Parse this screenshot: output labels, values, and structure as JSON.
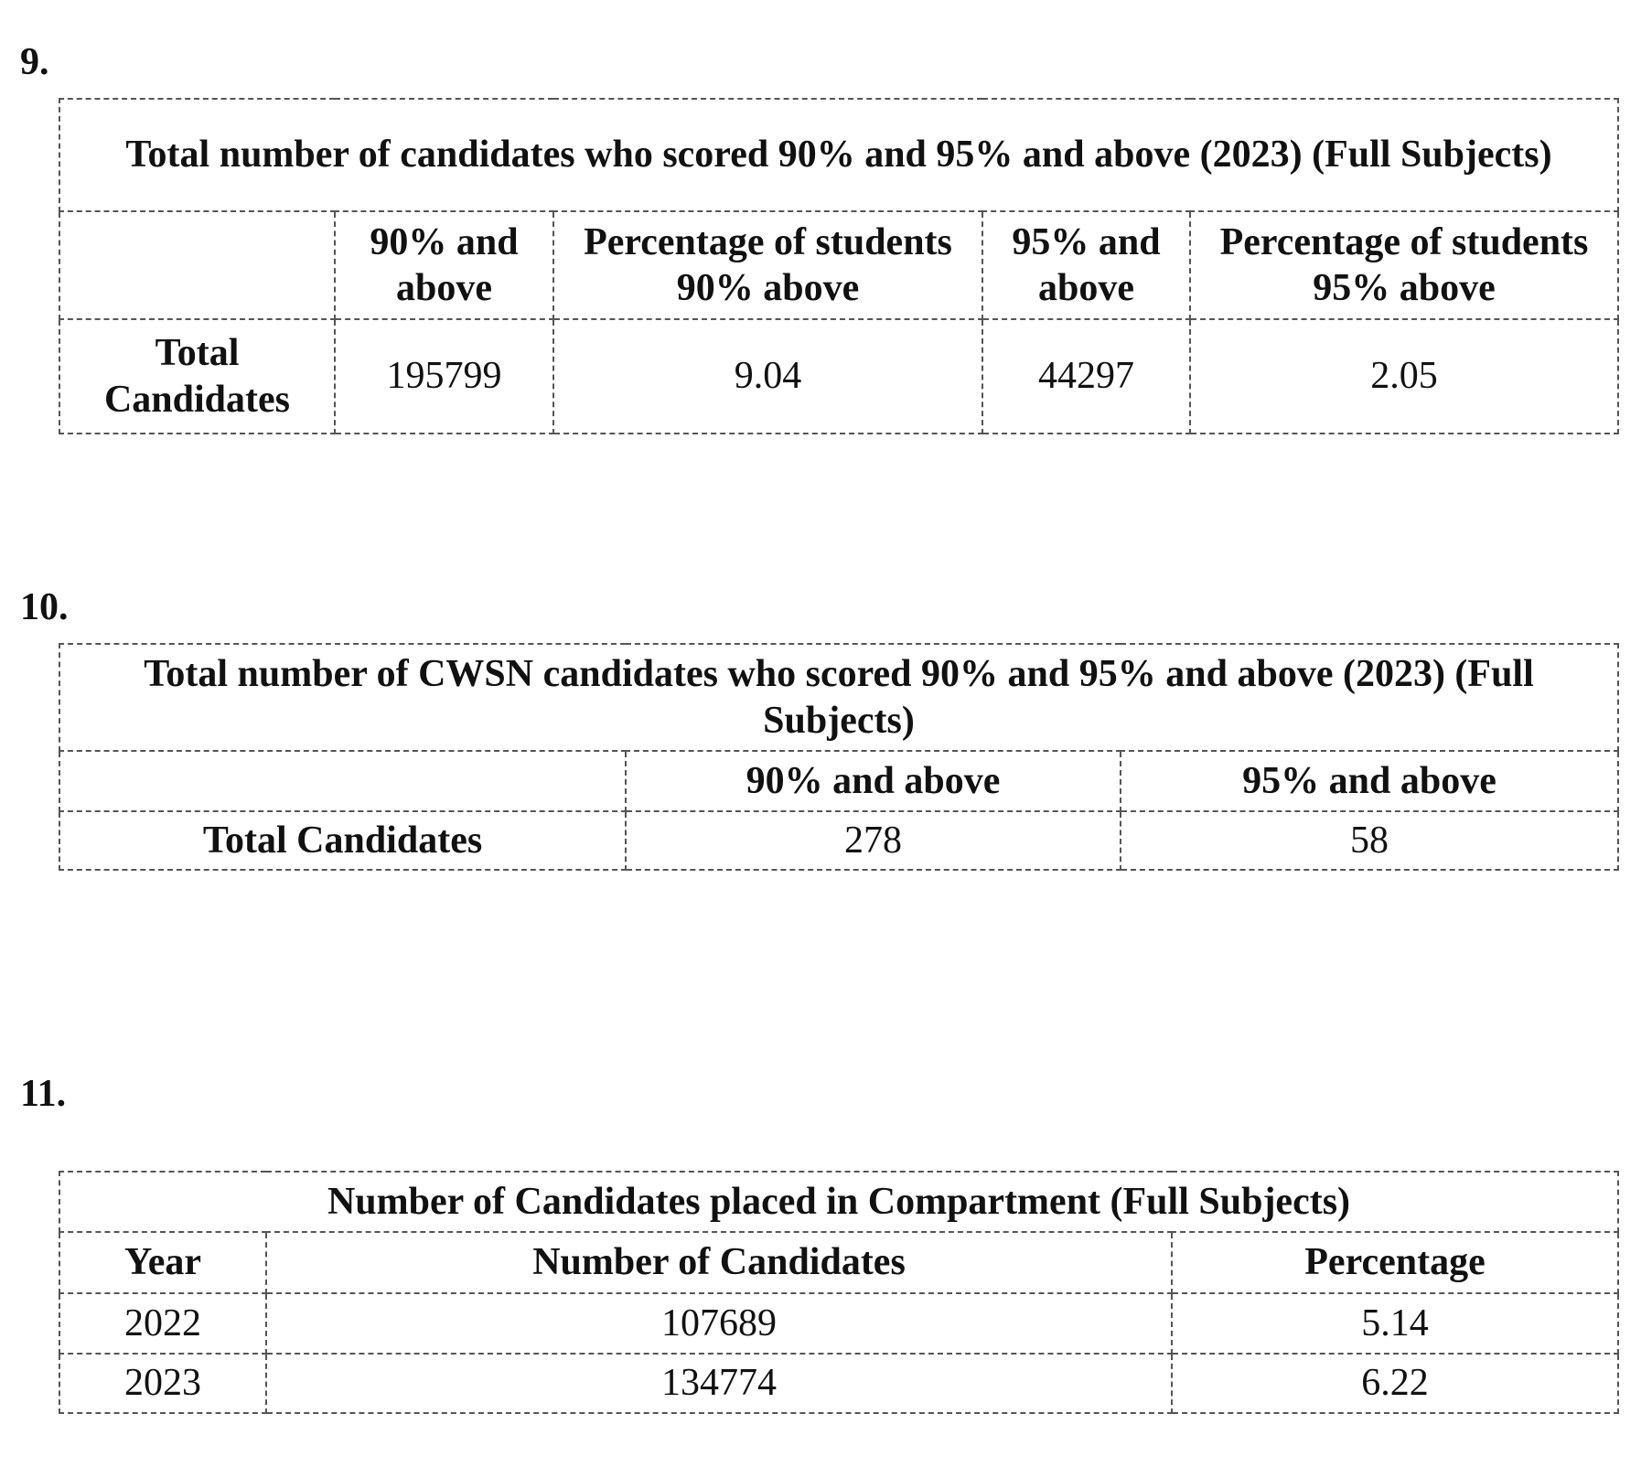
{
  "sections": [
    {
      "number": "9.",
      "table": {
        "title": "Total number of candidates who scored 90% and 95% and above (2023) (Full Subjects)",
        "header": [
          "90% and above",
          "Percentage of students 90% above",
          "95% and above",
          "Percentage of students 95% above"
        ],
        "rows": [
          [
            "Total Candidates",
            195799,
            9.04,
            44297,
            2.05
          ]
        ]
      }
    },
    {
      "number": "10.",
      "table": {
        "title": "Total number of CWSN candidates who scored 90% and 95% and above (2023) (Full Subjects)",
        "header": [
          "90% and above",
          "95% and above"
        ],
        "rows": [
          [
            "Total Candidates",
            278,
            58
          ]
        ]
      }
    },
    {
      "number": "11.",
      "table": {
        "title": "Number of Candidates placed in Compartment (Full Subjects)",
        "header": [
          "Year",
          "Number of Candidates",
          "Percentage"
        ],
        "rows": [
          [
            2022,
            107689,
            5.14
          ],
          [
            2023,
            134774,
            6.22
          ]
        ]
      }
    }
  ]
}
